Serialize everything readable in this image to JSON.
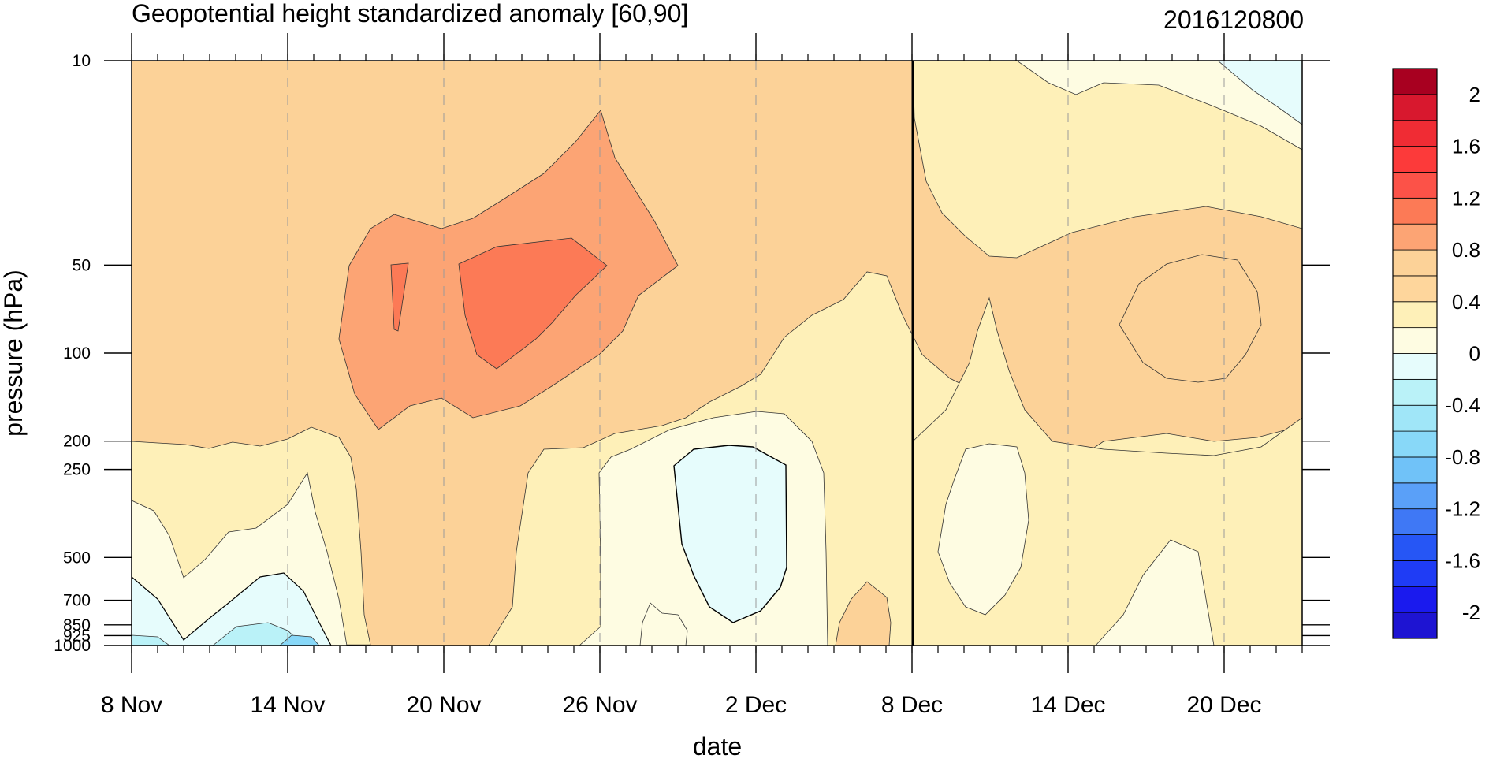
{
  "chart_data": {
    "type": "heatmap",
    "title": "Geopotential height standardized anomaly [60,90]",
    "timestamp_label": "2016120800",
    "xlabel": "date",
    "ylabel": "pressure (hPa)",
    "x_axis": {
      "unit": "date",
      "range": [
        "2016-11-08",
        "2016-12-23"
      ],
      "ticks": [
        {
          "date": "2016-11-08",
          "label": "8 Nov"
        },
        {
          "date": "2016-11-14",
          "label": "14 Nov"
        },
        {
          "date": "2016-11-20",
          "label": "20 Nov"
        },
        {
          "date": "2016-11-26",
          "label": "26 Nov"
        },
        {
          "date": "2016-12-02",
          "label": "2 Dec"
        },
        {
          "date": "2016-12-08",
          "label": "8 Dec"
        },
        {
          "date": "2016-12-14",
          "label": "14 Dec"
        },
        {
          "date": "2016-12-20",
          "label": "20 Dec"
        }
      ],
      "minor_tick_interval_days": 1,
      "marker_line_date": "2016-12-08"
    },
    "y_axis": {
      "unit": "hPa",
      "scale": "log",
      "reversed": true,
      "range": [
        1000,
        10
      ],
      "ticks": [
        {
          "value": 10,
          "label": "10"
        },
        {
          "value": 50,
          "label": "50"
        },
        {
          "value": 100,
          "label": "100"
        },
        {
          "value": 200,
          "label": "200"
        },
        {
          "value": 250,
          "label": "250"
        },
        {
          "value": 500,
          "label": "500"
        },
        {
          "value": 700,
          "label": "700"
        },
        {
          "value": 850,
          "label": "850"
        },
        {
          "value": 925,
          "label": "925"
        },
        {
          "value": 1000,
          "label": "1000"
        }
      ]
    },
    "grid": "vertical dashed lines at major date ticks",
    "colorbar": {
      "placement": "right",
      "levels": [
        -2.2,
        -2,
        -1.8,
        -1.6,
        -1.4,
        -1.2,
        -1,
        -0.8,
        -0.6,
        -0.4,
        -0.2,
        0,
        0.2,
        0.4,
        0.6,
        0.8,
        1,
        1.2,
        1.4,
        1.6,
        1.8,
        2,
        2.2
      ],
      "colors": [
        "#1e14d2",
        "#1a1aee",
        "#1f3cf5",
        "#2656f5",
        "#3f78f5",
        "#5aa0f8",
        "#70c2f8",
        "#88d8f8",
        "#a0e6f8",
        "#baf2f8",
        "#e6fcfc",
        "#fefce2",
        "#fef0b8",
        "#fed69c",
        "#fcd298",
        "#fca474",
        "#fc7a56",
        "#fc5248",
        "#fc3a3a",
        "#f02c34",
        "#d8182e",
        "#a80020"
      ],
      "labels": [
        {
          "value": 2,
          "label": "2"
        },
        {
          "value": 1.6,
          "label": "1.6"
        },
        {
          "value": 1.2,
          "label": "1.2"
        },
        {
          "value": 0.8,
          "label": "0.8"
        },
        {
          "value": 0.4,
          "label": "0.4"
        },
        {
          "value": 0,
          "label": "0"
        },
        {
          "value": -0.4,
          "label": "-0.4"
        },
        {
          "value": -0.8,
          "label": "-0.8"
        },
        {
          "value": -1.2,
          "label": "-1.2"
        },
        {
          "value": -1.6,
          "label": "-1.6"
        },
        {
          "value": -2,
          "label": "-2"
        }
      ]
    },
    "field": {
      "description_level": "estimated contour regions (value = level shown by fill)",
      "background_value": 0.5,
      "regions": [
        {
          "name": "upper-tongue",
          "value": 0.6,
          "points": [
            [
              "2016-11-16",
              1000
            ],
            [
              "2016-11-16",
              300
            ],
            [
              "2016-11-15",
              120
            ],
            [
              "2016-11-14",
              95
            ],
            [
              "2016-11-13",
              100
            ],
            [
              "2016-11-12",
              105
            ],
            [
              "2016-11-10",
              110
            ],
            [
              "2016-11-09",
              130
            ],
            [
              "2016-11-08",
              115
            ],
            [
              "2016-11-08",
              200
            ],
            [
              "2016-11-09",
              205
            ],
            [
              "2016-11-10",
              210
            ],
            [
              "2016-11-11",
              215
            ],
            [
              "2016-11-12",
              200
            ],
            [
              "2016-11-13",
              205
            ],
            [
              "2016-11-14",
              200
            ],
            [
              "2016-11-15",
              185
            ],
            [
              "2016-11-16",
              205
            ],
            [
              "2016-11-17",
              1000
            ]
          ]
        },
        {
          "name": "lower-warm",
          "value": 0.4,
          "points": [
            [
              "2016-11-08",
              200
            ],
            [
              "2016-11-10",
              210
            ],
            [
              "2016-11-13",
              205
            ],
            [
              "2016-11-15",
              185
            ],
            [
              "2016-11-16",
              230
            ],
            [
              "2016-11-16",
              900
            ],
            [
              "2016-11-17",
              1000
            ],
            [
              "2016-11-08",
              1000
            ]
          ]
        },
        {
          "name": "center-red",
          "value": 1.1,
          "points": [
            [
              "2016-11-21",
              50
            ],
            [
              "2016-11-23",
              47
            ],
            [
              "2016-11-25",
              45
            ],
            [
              "2016-11-26",
              50
            ],
            [
              "2016-11-25",
              60
            ],
            [
              "2016-11-24",
              72
            ],
            [
              "2016-11-23",
              100
            ],
            [
              "2016-11-22",
              110
            ],
            [
              "2016-11-21",
              100
            ]
          ]
        },
        {
          "name": "cold-center",
          "value": -0.2,
          "points": [
            [
              "2016-11-29",
              245
            ],
            [
              "2016-11-30",
              215
            ],
            [
              "2016-12-01",
              210
            ],
            [
              "2016-12-02",
              220
            ],
            [
              "2016-12-02",
              500
            ],
            [
              "2016-12-01",
              750
            ],
            [
              "2016-11-30",
              800
            ],
            [
              "2016-11-29",
              700
            ],
            [
              "2016-11-29",
              500
            ]
          ]
        }
      ]
    }
  }
}
